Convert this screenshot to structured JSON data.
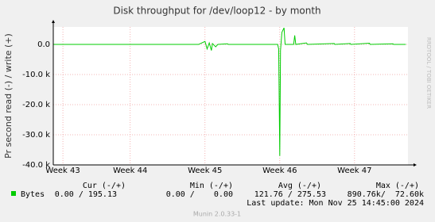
{
  "chart_data": {
    "type": "line",
    "title": "Disk throughput for /dev/loop12 - by month",
    "y_label": "Pr second read (-) / write (+)",
    "side_text": "RRDTOOL / TOBI OETIKER",
    "xlim": [
      -0.2,
      33
    ],
    "ylim": [
      -40000,
      5800
    ],
    "xticks": [
      {
        "value": 0.7,
        "label": "Week 43"
      },
      {
        "value": 7,
        "label": "Week 44"
      },
      {
        "value": 14,
        "label": "Week 45"
      },
      {
        "value": 21,
        "label": "Week 46"
      },
      {
        "value": 28,
        "label": "Week 47"
      }
    ],
    "yticks": [
      {
        "value": 0,
        "label": "0.0"
      },
      {
        "value": -10000,
        "label": "-10.0 k"
      },
      {
        "value": -20000,
        "label": "-20.0 k"
      },
      {
        "value": -30000,
        "label": "-30.0 k"
      },
      {
        "value": -40000,
        "label": "-40.0 k"
      }
    ],
    "grid": true,
    "series": [
      {
        "name": "Bytes",
        "color": "#00cc00",
        "x": [
          -0.2,
          13.4,
          14.0,
          14.2,
          14.4,
          14.6,
          14.7,
          15.0,
          15.2,
          16.1,
          16.2,
          20.8,
          20.9,
          21.0,
          21.07,
          21.2,
          21.4,
          21.5,
          22.3,
          22.4,
          22.5,
          23.5,
          23.6,
          26.1,
          26.15,
          27.6,
          27.65,
          29.4,
          29.45,
          31.6,
          31.65,
          32.8
        ],
        "values": [
          0,
          0,
          1000,
          -1500,
          500,
          -2000,
          300,
          -800,
          0,
          200,
          0,
          0,
          -1500,
          -37000,
          -2000,
          4000,
          5500,
          0,
          0,
          3000,
          0,
          500,
          0,
          300,
          0,
          300,
          0,
          400,
          0,
          200,
          0,
          0
        ]
      }
    ],
    "legend_table": {
      "headers": [
        "Cur (-/+)",
        "Min (-/+)",
        "Avg (-/+)",
        "Max (-/+)"
      ],
      "rows": [
        [
          "0.00 / 195.13",
          "0.00 /    0.00",
          "121.76 / 275.53",
          "890.76k/  72.60k"
        ]
      ]
    },
    "last_update": "Last update: Mon Nov 25 14:45:00 2024",
    "footer": "Munin 2.0.33-1"
  }
}
